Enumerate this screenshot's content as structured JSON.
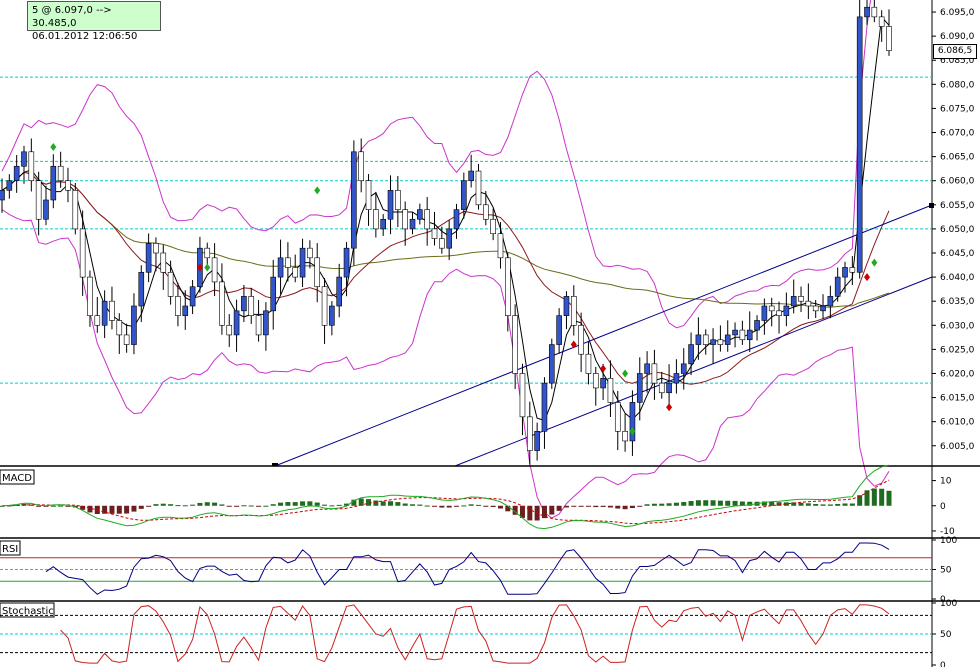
{
  "info": {
    "line1": "5 @ 6.097,0   --> 30.485,0",
    "line2": "06.01.2012    12:06:50"
  },
  "last_price": "6.086,5",
  "panels": {
    "macd": "MACD",
    "rsi": "RSI",
    "stochastic": "Stochastic"
  },
  "colors": {
    "up_candle": "#3355cc",
    "down_candle": "#ffffff",
    "bollinger": "#cc33cc",
    "sma_fast": "#000000",
    "sma_mid": "#8b1a1a",
    "sma_slow": "#6b6b1a",
    "channel": "#00008b",
    "hline": "#00cccc",
    "macd_up": "#1f6b1f",
    "macd_down": "#6b1f1f",
    "macd_signal": "#cc0000",
    "macd_line": "#22aa22",
    "rsi_line": "#000080",
    "stoch_line": "#cc2222"
  },
  "chart_data": [
    {
      "type": "candlestick",
      "title": "",
      "y_ticks": [
        "6.005,0",
        "6.010,0",
        "6.015,0",
        "6.020,0",
        "6.025,0",
        "6.030,0",
        "6.035,0",
        "6.040,0",
        "6.045,0",
        "6.050,0",
        "6.055,0",
        "6.060,0",
        "6.065,0",
        "6.070,0",
        "6.075,0",
        "6.080,0",
        "6.085,0",
        "6.090,0",
        "6.095,0"
      ],
      "ylim": [
        6000.8,
        6097.5
      ],
      "horizontal_levels": [
        6081.5,
        6064.0,
        6060.0,
        6050.0,
        6018.0
      ],
      "close_series": [
        6058,
        6060,
        6063,
        6066,
        6060,
        6052,
        6056,
        6063,
        6060,
        6058,
        6050,
        6040,
        6032,
        6030,
        6035,
        6031,
        6028,
        6026,
        6034,
        6041,
        6047,
        6045,
        6041,
        6036,
        6032,
        6034,
        6038,
        6046,
        6044,
        6039,
        6030,
        6028,
        6033,
        6036,
        6032,
        6028,
        6033,
        6040,
        6044,
        6042,
        6040,
        6046,
        6044,
        6038,
        6030,
        6034,
        6040,
        6046,
        6066,
        6060,
        6054,
        6050,
        6052,
        6058,
        6054,
        6050,
        6052,
        6054,
        6050,
        6048,
        6046,
        6050,
        6054,
        6060,
        6062,
        6055,
        6052,
        6049,
        6044,
        6032,
        6020,
        6011,
        6004,
        6008,
        6018,
        6026,
        6032,
        6036,
        6030,
        6024,
        6020,
        6017,
        6019,
        6014,
        6008,
        6006,
        6014,
        6020,
        6022,
        6018,
        6016,
        6018,
        6020,
        6022,
        6026,
        6028,
        6026,
        6027,
        6026,
        6028,
        6029,
        6027,
        6029,
        6031,
        6034,
        6033,
        6032,
        6034,
        6036,
        6035,
        6034,
        6033,
        6034,
        6036,
        6040,
        6042,
        6041,
        6094,
        6096,
        6094,
        6092,
        6087
      ]
    },
    {
      "type": "bar",
      "title": "MACD",
      "y_ticks": [
        "10",
        "0",
        "-10"
      ],
      "ylim": [
        -12,
        15
      ]
    },
    {
      "type": "line",
      "title": "RSI",
      "y_ticks": [
        "100",
        "50",
        "0"
      ],
      "ylim": [
        0,
        100
      ],
      "levels": [
        70,
        50,
        30
      ]
    },
    {
      "type": "line",
      "title": "Stochastic",
      "y_ticks": [
        "100",
        "50",
        "0"
      ],
      "ylim": [
        0,
        100
      ],
      "levels": [
        80,
        50,
        20
      ]
    }
  ]
}
